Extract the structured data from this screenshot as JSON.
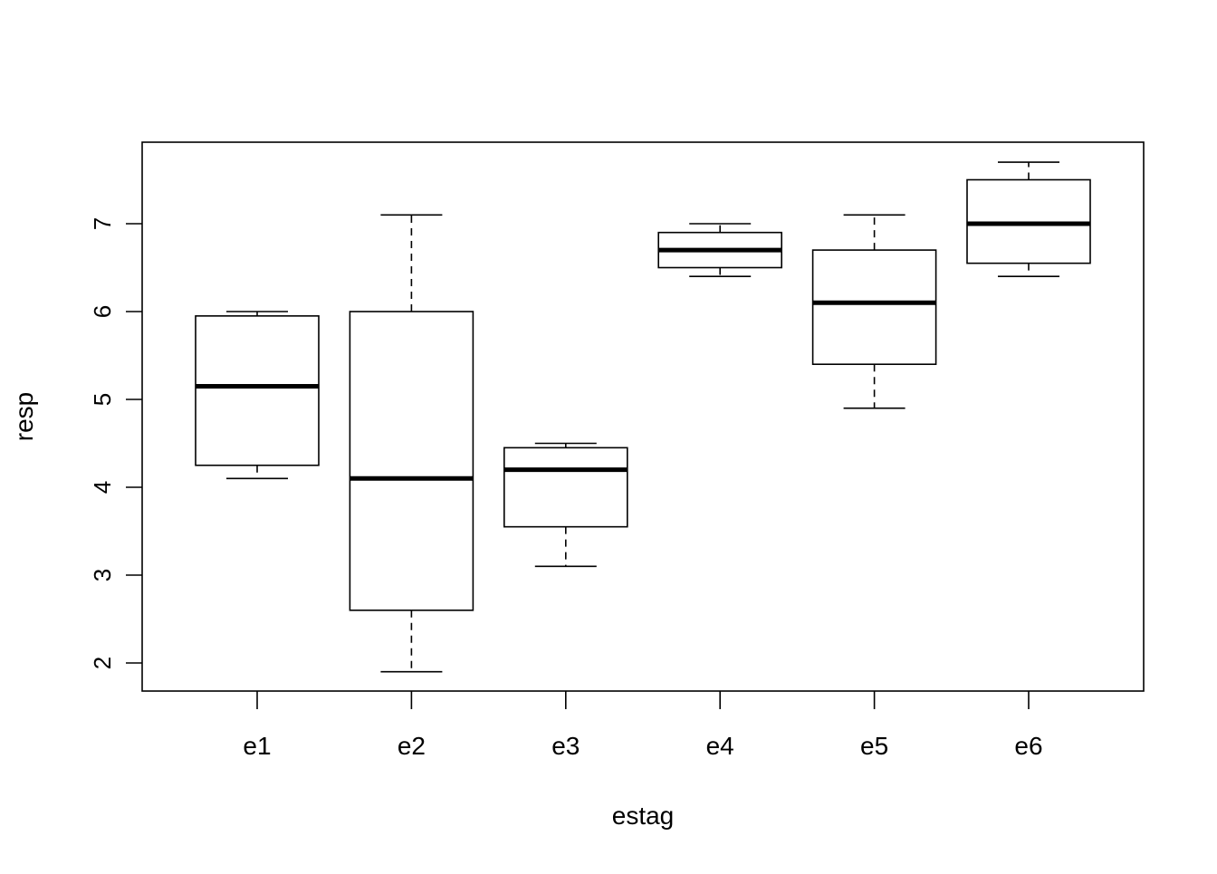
{
  "chart_data": {
    "type": "box",
    "title": "",
    "xlabel": "estag",
    "ylabel": "resp",
    "ylim": [
      1.9,
      7.7
    ],
    "yticks": [
      "2",
      "3",
      "4",
      "5",
      "6",
      "7"
    ],
    "categories": [
      "e1",
      "e2",
      "e3",
      "e4",
      "e5",
      "e6"
    ],
    "boxes": [
      {
        "name": "e1",
        "min": 4.1,
        "q1": 4.25,
        "median": 5.15,
        "q3": 5.95,
        "max": 6.0
      },
      {
        "name": "e2",
        "min": 1.9,
        "q1": 2.6,
        "median": 4.1,
        "q3": 6.0,
        "max": 7.1
      },
      {
        "name": "e3",
        "min": 3.1,
        "q1": 3.55,
        "median": 4.2,
        "q3": 4.45,
        "max": 4.5
      },
      {
        "name": "e4",
        "min": 6.4,
        "q1": 6.5,
        "median": 6.7,
        "q3": 6.9,
        "max": 7.0
      },
      {
        "name": "e5",
        "min": 4.9,
        "q1": 5.4,
        "median": 6.1,
        "q3": 6.7,
        "max": 7.1
      },
      {
        "name": "e6",
        "min": 6.4,
        "q1": 6.55,
        "median": 7.0,
        "q3": 7.5,
        "max": 7.7
      }
    ],
    "grid": false,
    "legend": "none"
  }
}
